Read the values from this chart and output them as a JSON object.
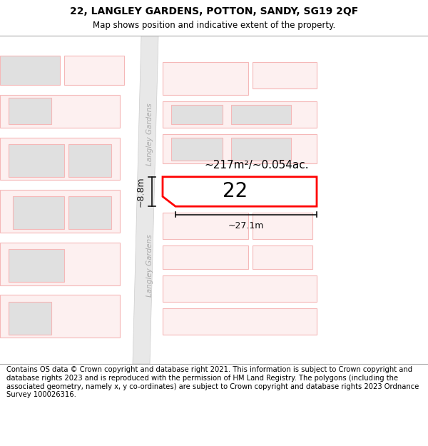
{
  "title": "22, LANGLEY GARDENS, POTTON, SANDY, SG19 2QF",
  "subtitle": "Map shows position and indicative extent of the property.",
  "footer": "Contains OS data © Crown copyright and database right 2021. This information is subject to Crown copyright and database rights 2023 and is reproduced with the permission of HM Land Registry. The polygons (including the associated geometry, namely x, y co-ordinates) are subject to Crown copyright and database rights 2023 Ordnance Survey 100026316.",
  "map_bg": "#ffffff",
  "road_fill": "#e8e8e8",
  "road_edge": "#cccccc",
  "plot_edge_highlight": "#ff0000",
  "plot_fill_highlight": "#ffffff",
  "building_fill": "#e0e0e0",
  "building_edge_light": "#f5b8b8",
  "plot_edge_light": "#f5b8b8",
  "plot_fill_light": "#fdf0f0",
  "label_22": "22",
  "area_label": "~217m²/~0.054ac.",
  "dim_width": "~27.1m",
  "dim_height": "~8.8m",
  "road_label": "Langley Gardens",
  "title_fontsize": 10,
  "subtitle_fontsize": 8.5,
  "footer_fontsize": 7.2
}
